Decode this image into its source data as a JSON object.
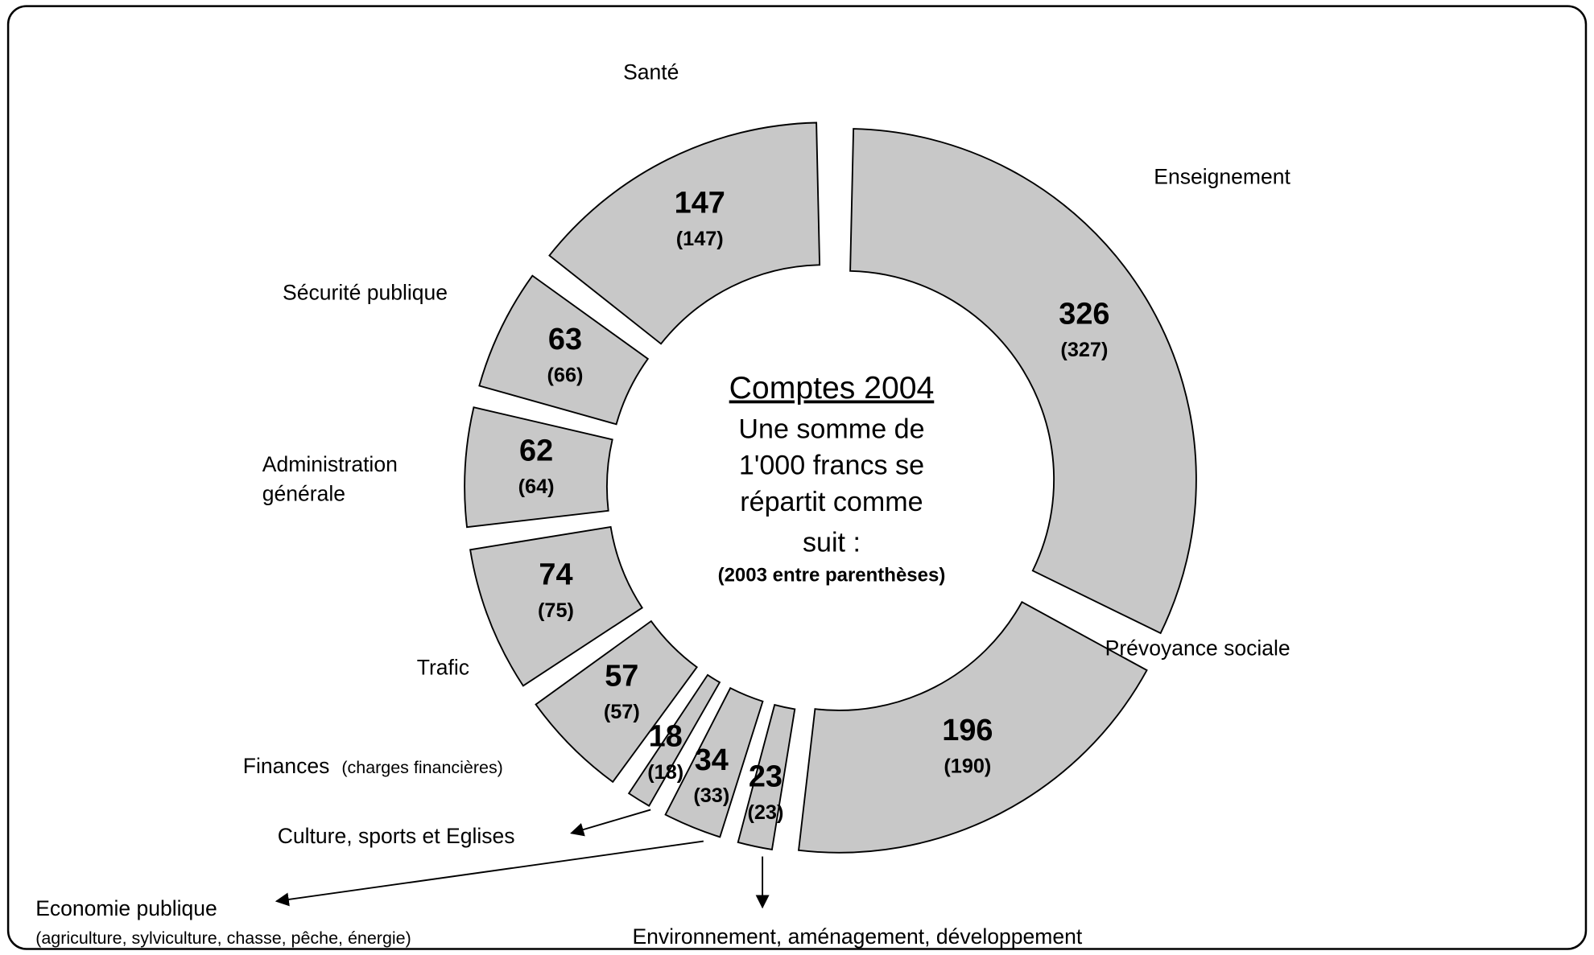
{
  "chart_data": {
    "type": "donut",
    "title": "Comptes 2004",
    "subtitle": [
      "Une somme de",
      "1'000 francs se",
      "répartit comme",
      "suit :"
    ],
    "note": "(2003 entre parenthèses)",
    "categories": [
      "Enseignement",
      "Prévoyance sociale",
      "Environnement, aménagement, développement",
      "Economie publique",
      "Culture, sports et Eglises",
      "Finances",
      "Trafic",
      "Administration générale",
      "Sécurité publique",
      "Santé"
    ],
    "category_notes": [
      null,
      null,
      null,
      "(agriculture, sylviculture, chasse, pêche, énergie)",
      null,
      "(charges financières)",
      null,
      null,
      null,
      null
    ],
    "values": [
      326,
      196,
      23,
      34,
      18,
      57,
      74,
      62,
      63,
      147
    ],
    "previous_values": [
      327,
      190,
      23,
      33,
      18,
      57,
      75,
      64,
      66,
      147
    ],
    "previous_value_labels": [
      "(327)",
      "(190)",
      "(23)",
      "(33)",
      "(18)",
      "(57)",
      "(75)",
      "(64)",
      "(66)",
      "(147)"
    ],
    "color": "#c8c8c8"
  }
}
